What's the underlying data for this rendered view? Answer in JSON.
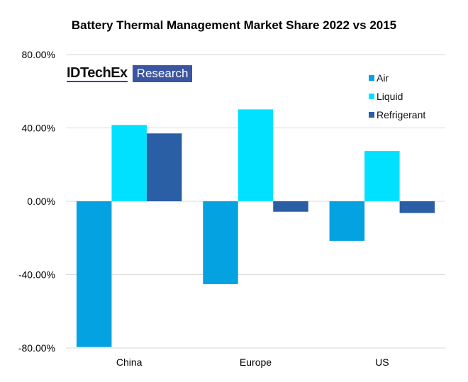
{
  "chart_data": {
    "type": "bar",
    "title": "Battery Thermal Management Market Share 2022 vs 2015",
    "categories": [
      "China",
      "Europe",
      "US"
    ],
    "series": [
      {
        "name": "Air",
        "color": "#05A2E2",
        "values": [
          -79.5,
          -45.2,
          -21.6
        ]
      },
      {
        "name": "Liquid",
        "color": "#00E1FF",
        "values": [
          41.6,
          50.1,
          27.4
        ]
      },
      {
        "name": "Refrigerant",
        "color": "#2A5EA5",
        "values": [
          37.0,
          -5.7,
          -6.4
        ]
      }
    ],
    "yticks": [
      "80.00%",
      "40.00%",
      "0.00%",
      "-40.00%",
      "-80.00%"
    ],
    "ylim": [
      -80,
      80
    ],
    "grid": true,
    "legend_position": "top-right",
    "xlabel": "",
    "ylabel": ""
  },
  "logo": {
    "brand": "IDTechEx",
    "tag": "Research"
  }
}
